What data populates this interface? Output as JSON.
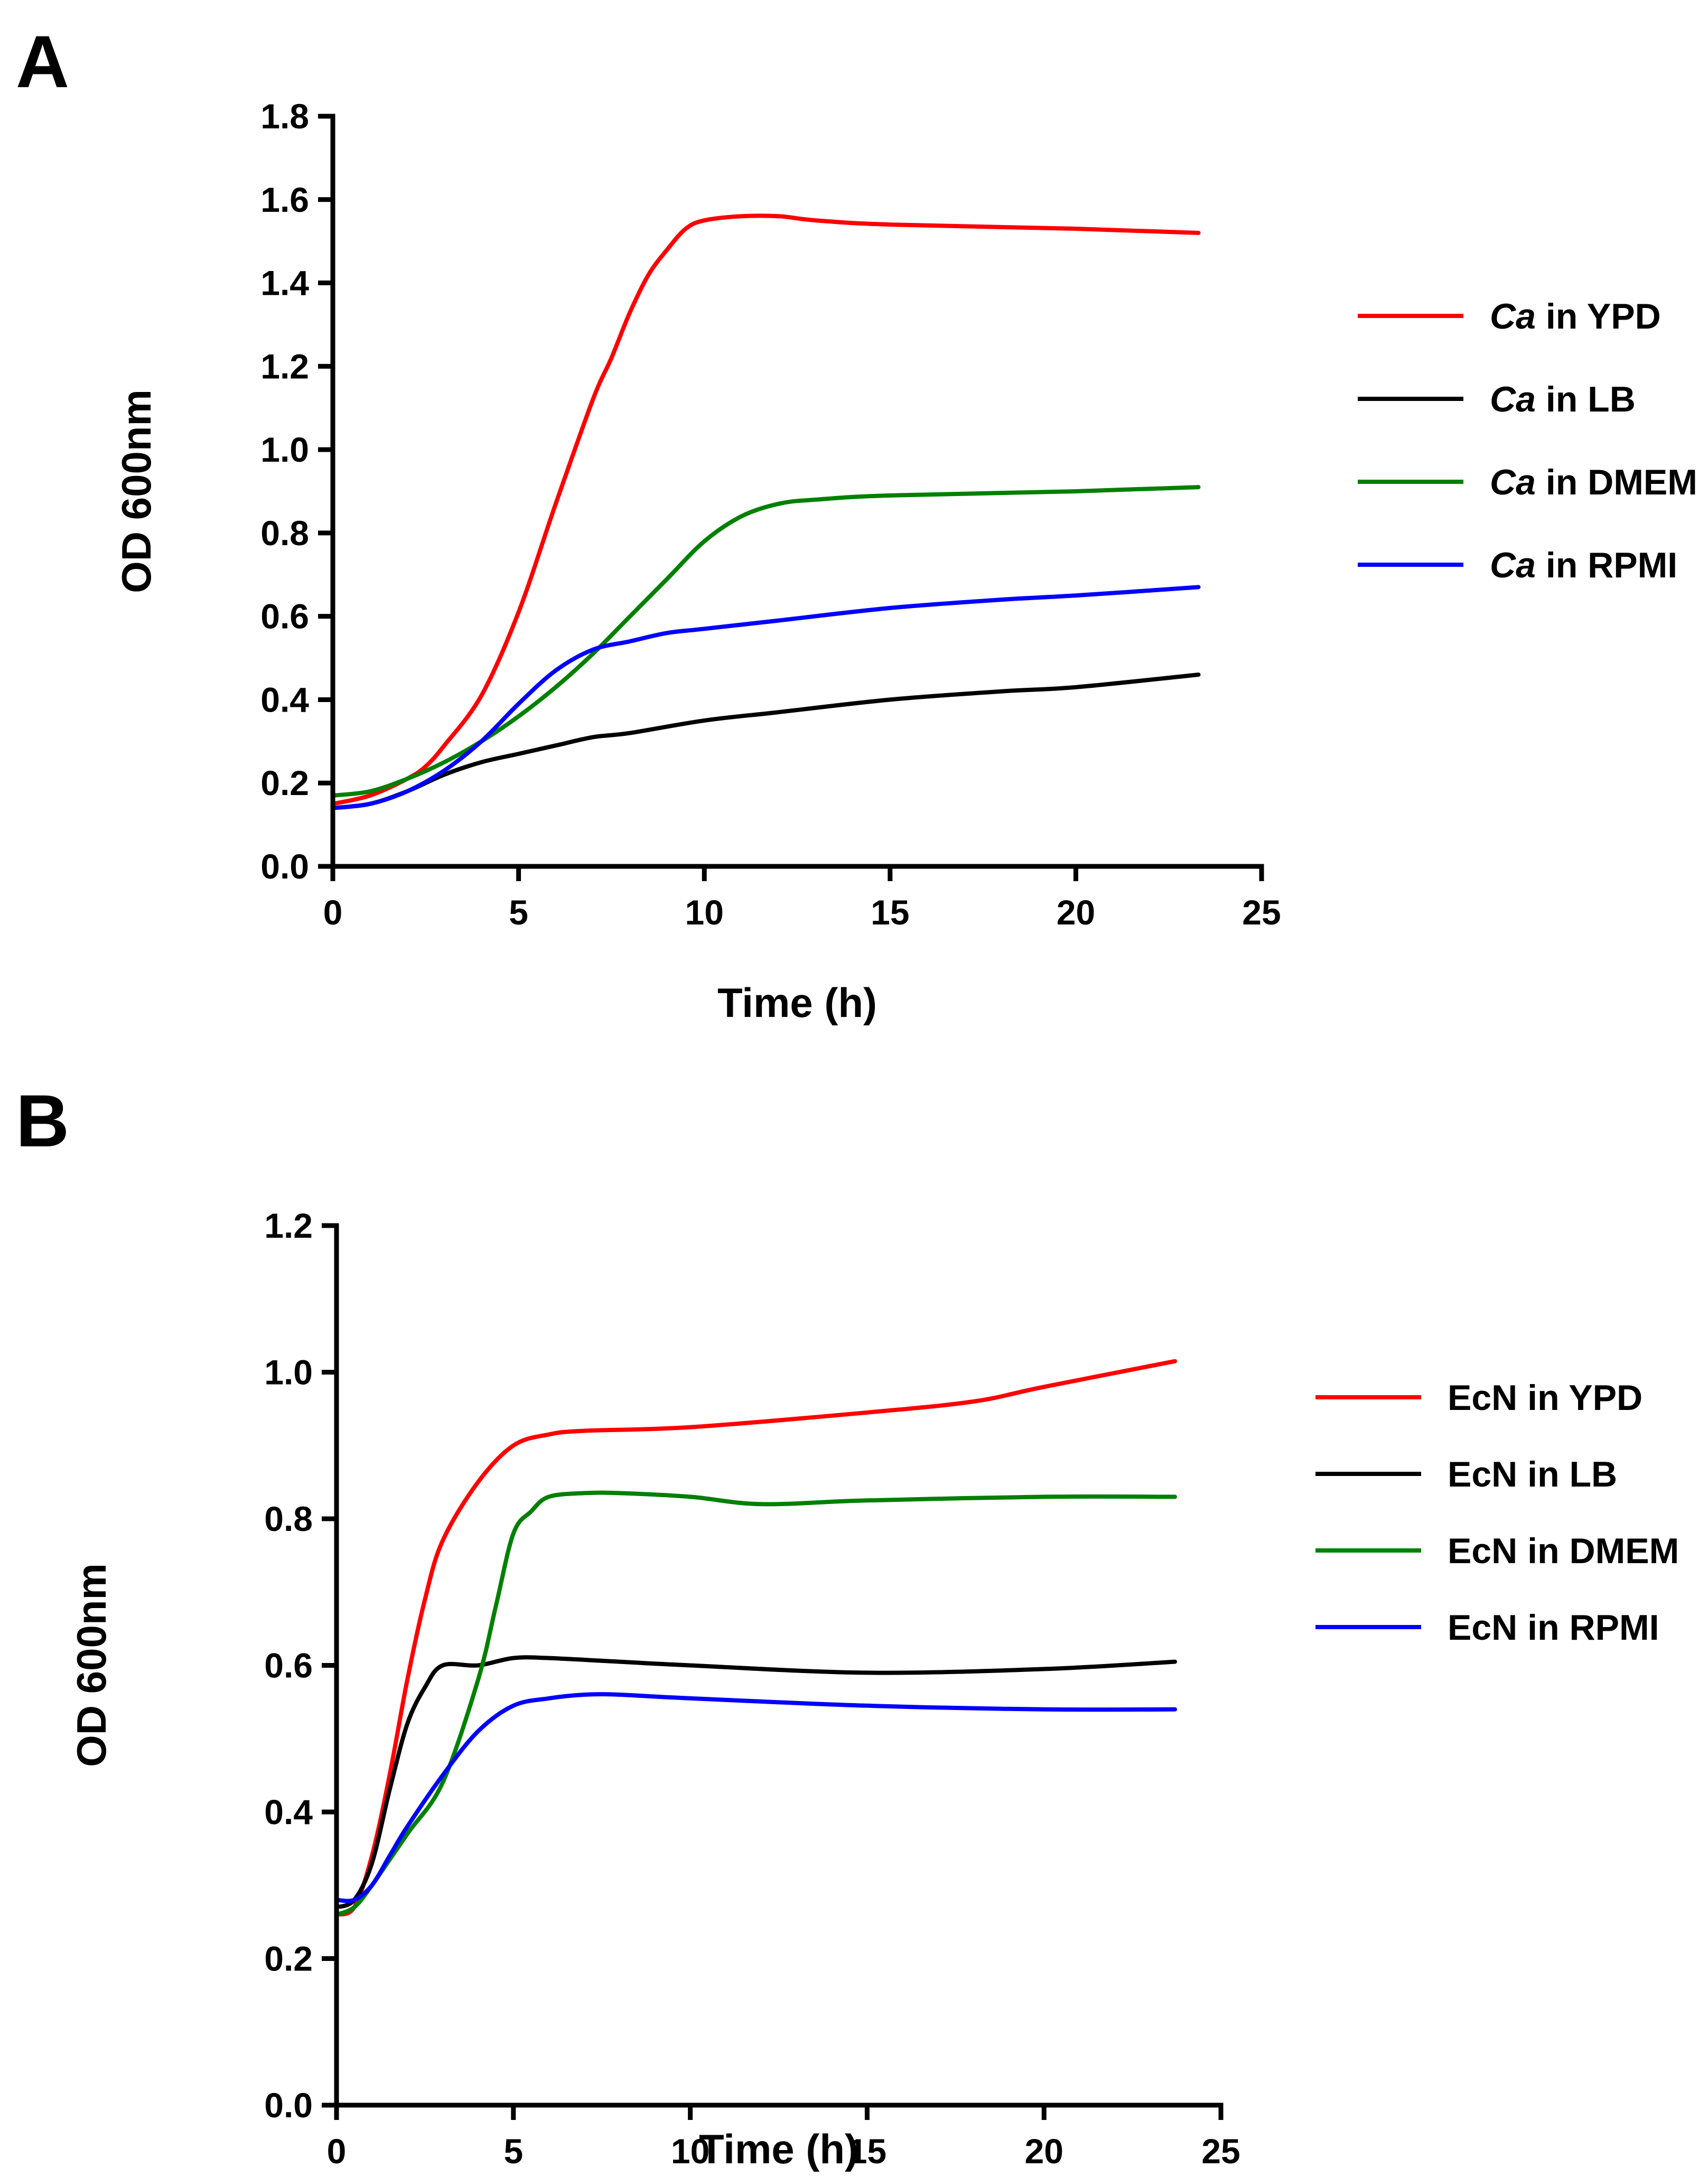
{
  "chart_data": [
    {
      "panel": "A",
      "type": "line",
      "xlabel": "Time (h)",
      "ylabel": "OD 600nm",
      "xlim": [
        0,
        25
      ],
      "ylim": [
        0,
        1.8
      ],
      "xticks": [
        "0",
        "5",
        "10",
        "15",
        "20",
        "25"
      ],
      "yticks": [
        "0.0",
        "0.2",
        "0.4",
        "0.6",
        "0.8",
        "1.0",
        "1.2",
        "1.4",
        "1.6",
        "1.8"
      ],
      "legend_position": "right",
      "series": [
        {
          "name_italic": "Ca",
          "name_rest": " in YPD",
          "color": "#ff0000",
          "x": [
            0,
            1,
            2,
            2.5,
            3,
            4,
            5,
            6,
            7,
            7.5,
            8,
            8.5,
            9,
            9.5,
            10,
            11,
            12,
            13,
            15,
            20,
            23.3
          ],
          "y": [
            0.15,
            0.17,
            0.21,
            0.24,
            0.29,
            0.41,
            0.61,
            0.87,
            1.12,
            1.22,
            1.33,
            1.42,
            1.48,
            1.53,
            1.55,
            1.56,
            1.56,
            1.55,
            1.54,
            1.53,
            1.52
          ]
        },
        {
          "name_italic": "Ca",
          "name_rest": " in LB",
          "color": "#000000",
          "x": [
            0,
            1,
            2,
            3,
            4,
            5,
            6,
            7,
            8,
            10,
            12,
            15,
            18,
            20,
            23.3
          ],
          "y": [
            0.14,
            0.15,
            0.18,
            0.22,
            0.25,
            0.27,
            0.29,
            0.31,
            0.32,
            0.35,
            0.37,
            0.4,
            0.42,
            0.43,
            0.46
          ]
        },
        {
          "name_italic": "Ca",
          "name_rest": " in DMEM",
          "color": "#008000",
          "x": [
            0,
            1,
            2,
            3,
            4,
            5,
            6,
            7,
            8,
            9,
            10,
            11,
            12,
            13,
            15,
            20,
            23.3
          ],
          "y": [
            0.17,
            0.18,
            0.21,
            0.25,
            0.3,
            0.36,
            0.43,
            0.51,
            0.6,
            0.69,
            0.78,
            0.84,
            0.87,
            0.88,
            0.89,
            0.9,
            0.91
          ]
        },
        {
          "name_italic": "Ca",
          "name_rest": " in RPMI",
          "color": "#0000ff",
          "x": [
            0,
            1,
            2,
            3,
            4,
            5,
            6,
            7,
            8,
            9,
            10,
            12,
            15,
            18,
            20,
            23.3
          ],
          "y": [
            0.14,
            0.15,
            0.18,
            0.23,
            0.3,
            0.39,
            0.47,
            0.52,
            0.54,
            0.56,
            0.57,
            0.59,
            0.62,
            0.64,
            0.65,
            0.67
          ]
        }
      ]
    },
    {
      "panel": "B",
      "type": "line",
      "xlabel": "Time (h)",
      "ylabel": "OD 600nm",
      "xlim": [
        0,
        25
      ],
      "ylim": [
        0,
        1.2
      ],
      "xticks": [
        "0",
        "5",
        "10",
        "15",
        "20",
        "25"
      ],
      "yticks": [
        "0.0",
        "0.2",
        "0.4",
        "0.6",
        "0.8",
        "1.0",
        "1.2"
      ],
      "legend_position": "right",
      "series": [
        {
          "name_italic": "",
          "name_rest": "EcN in YPD",
          "color": "#ff0000",
          "x": [
            0,
            0.5,
            1,
            1.5,
            2,
            2.5,
            3,
            4,
            5,
            6,
            7,
            10,
            15,
            18,
            20,
            23.7
          ],
          "y": [
            0.26,
            0.27,
            0.34,
            0.45,
            0.58,
            0.69,
            0.77,
            0.85,
            0.9,
            0.915,
            0.92,
            0.925,
            0.945,
            0.96,
            0.98,
            1.015
          ]
        },
        {
          "name_italic": "",
          "name_rest": "EcN in LB",
          "color": "#000000",
          "x": [
            0,
            0.5,
            1,
            1.5,
            2,
            2.5,
            3,
            4,
            5,
            6,
            8,
            10,
            15,
            20,
            23.7
          ],
          "y": [
            0.27,
            0.28,
            0.33,
            0.43,
            0.52,
            0.57,
            0.6,
            0.6,
            0.61,
            0.61,
            0.605,
            0.6,
            0.59,
            0.595,
            0.605
          ]
        },
        {
          "name_italic": "",
          "name_rest": "EcN in DMEM",
          "color": "#008000",
          "x": [
            0,
            0.5,
            1,
            2,
            3,
            4,
            4.5,
            5,
            5.5,
            6,
            7,
            8,
            10,
            12,
            15,
            20,
            23.7
          ],
          "y": [
            0.26,
            0.27,
            0.3,
            0.37,
            0.44,
            0.58,
            0.68,
            0.78,
            0.81,
            0.83,
            0.835,
            0.835,
            0.83,
            0.82,
            0.825,
            0.83,
            0.83
          ]
        },
        {
          "name_italic": "",
          "name_rest": "EcN in RPMI",
          "color": "#0000ff",
          "x": [
            0,
            0.5,
            1,
            1.5,
            2,
            3,
            4,
            5,
            6,
            7,
            8,
            10,
            15,
            20,
            23.7
          ],
          "y": [
            0.28,
            0.28,
            0.3,
            0.34,
            0.38,
            0.45,
            0.51,
            0.545,
            0.555,
            0.56,
            0.56,
            0.555,
            0.545,
            0.54,
            0.54
          ]
        }
      ]
    }
  ]
}
